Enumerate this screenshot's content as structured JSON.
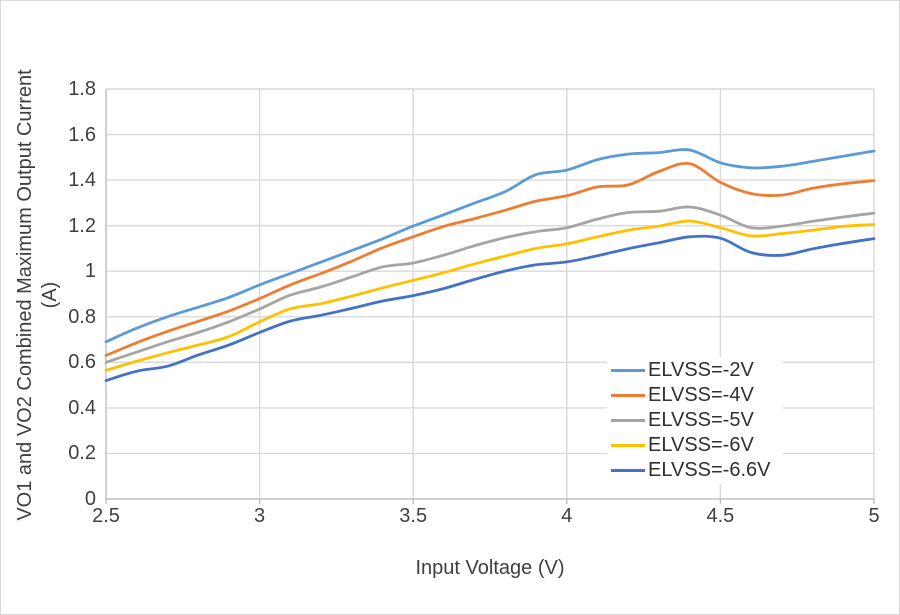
{
  "figure": {
    "background": "#ffffff",
    "frame_border_color": "#d9d9d9"
  },
  "chart_data": {
    "type": "line",
    "title": "",
    "xlabel": "Input Voltage (V)",
    "ylabel": "VO1 and VO2 Combined Maximum Output Current (A)",
    "ylabel_line1": "VO1 and VO2 Combined Maximum Output Current",
    "ylabel_line2": "(A)",
    "xlim": [
      2.5,
      5
    ],
    "ylim": [
      0,
      1.8
    ],
    "grid": true,
    "legend_position": "inside-lower-right",
    "x_tick_labels": [
      "2.5",
      "3",
      "3.5",
      "4",
      "4.5",
      "5"
    ],
    "x_tick_values": [
      2.5,
      3,
      3.5,
      4,
      4.5,
      5
    ],
    "y_tick_labels": [
      "0",
      "0.2",
      "0.4",
      "0.6",
      "0.8",
      "1",
      "1.2",
      "1.4",
      "1.6",
      "1.8"
    ],
    "y_tick_values": [
      0,
      0.2,
      0.4,
      0.6,
      0.8,
      1,
      1.2,
      1.4,
      1.6,
      1.8
    ],
    "x": [
      2.5,
      2.6,
      2.7,
      2.8,
      2.9,
      3.0,
      3.1,
      3.2,
      3.3,
      3.4,
      3.5,
      3.6,
      3.7,
      3.8,
      3.9,
      4.0,
      4.1,
      4.2,
      4.3,
      4.4,
      4.5,
      4.6,
      4.7,
      4.8,
      4.9,
      5.0
    ],
    "series": [
      {
        "name": "ELVSS=-2V",
        "color": "#5B9BD5",
        "values": [
          0.69,
          0.75,
          0.8,
          0.842,
          0.885,
          0.94,
          0.99,
          1.04,
          1.091,
          1.142,
          1.198,
          1.248,
          1.299,
          1.35,
          1.424,
          1.444,
          1.49,
          1.514,
          1.521,
          1.532,
          1.476,
          1.454,
          1.461,
          1.482,
          1.505,
          1.528
        ]
      },
      {
        "name": "ELVSS=-4V",
        "color": "#ED7D31",
        "values": [
          0.63,
          0.686,
          0.736,
          0.78,
          0.825,
          0.88,
          0.94,
          0.99,
          1.044,
          1.103,
          1.151,
          1.197,
          1.231,
          1.268,
          1.308,
          1.331,
          1.37,
          1.379,
          1.438,
          1.472,
          1.39,
          1.341,
          1.334,
          1.364,
          1.384,
          1.398
        ]
      },
      {
        "name": "ELVSS=-5V",
        "color": "#A5A5A5",
        "values": [
          0.6,
          0.645,
          0.69,
          0.731,
          0.778,
          0.834,
          0.895,
          0.931,
          0.975,
          1.019,
          1.036,
          1.071,
          1.112,
          1.148,
          1.174,
          1.191,
          1.229,
          1.258,
          1.263,
          1.282,
          1.246,
          1.191,
          1.198,
          1.219,
          1.238,
          1.255
        ]
      },
      {
        "name": "ELVSS=-6V",
        "color": "#FFC000",
        "values": [
          0.565,
          0.605,
          0.642,
          0.676,
          0.713,
          0.778,
          0.835,
          0.858,
          0.891,
          0.927,
          0.96,
          0.994,
          1.032,
          1.067,
          1.1,
          1.12,
          1.151,
          1.18,
          1.198,
          1.22,
          1.191,
          1.155,
          1.165,
          1.18,
          1.197,
          1.205
        ]
      },
      {
        "name": "ELVSS=-6.6V",
        "color": "#4472C4",
        "values": [
          0.52,
          0.561,
          0.583,
          0.632,
          0.676,
          0.731,
          0.781,
          0.807,
          0.837,
          0.869,
          0.893,
          0.924,
          0.964,
          1.001,
          1.028,
          1.041,
          1.068,
          1.099,
          1.125,
          1.151,
          1.145,
          1.082,
          1.07,
          1.098,
          1.122,
          1.143
        ]
      }
    ],
    "colors": {
      "gridline": "#D9D9D9",
      "axis_line": "#BFBFBF",
      "text": "#3F3F3F"
    }
  }
}
